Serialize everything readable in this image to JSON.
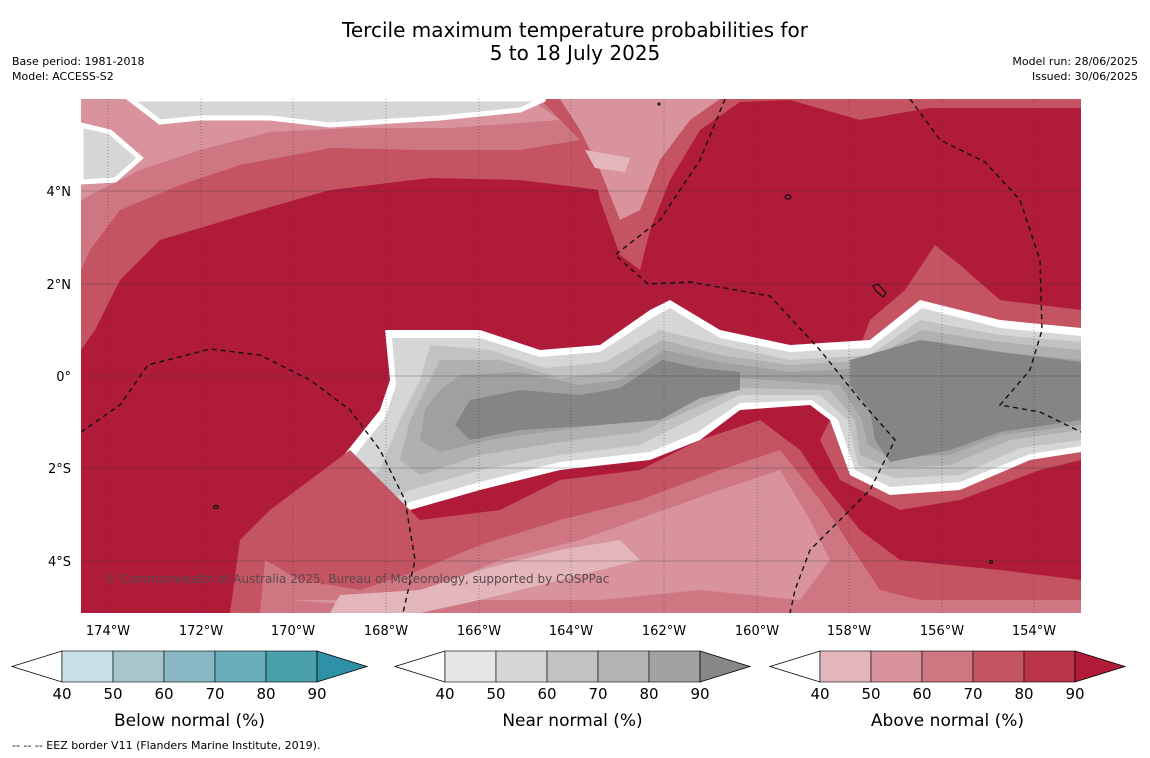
{
  "header": {
    "title_line1": "Tercile maximum temperature probabilities for",
    "title_line2": "5 to 18 July 2025",
    "base_period": "Base period: 1981-2018",
    "model": "Model: ACCESS-S2",
    "model_run": "Model run: 28/06/2025",
    "issued": "Issued: 30/06/2025"
  },
  "map": {
    "lon_labels": [
      "174°W",
      "172°W",
      "170°W",
      "168°W",
      "166°W",
      "164°W",
      "162°W",
      "160°W",
      "158°W",
      "156°W",
      "154°W"
    ],
    "lat_labels": [
      "4°N",
      "2°N",
      "0°",
      "2°S",
      "4°S"
    ],
    "copyright": "© Commonwealth of Australia 2025, Bureau of Meteorology, supported by COSPPac",
    "colors": {
      "above_70": "#c45462",
      "above_80": "#b81f3c",
      "above_90": "#b01b3a",
      "near_50": "#d6d6d6",
      "near_60": "#c2c2c2",
      "near_70": "#b0b0b0",
      "near_80": "#a0a0a0",
      "near_90": "#858585"
    }
  },
  "colorbars": [
    {
      "title": "Below normal (%)",
      "ticks": [
        "40",
        "50",
        "60",
        "70",
        "80",
        "90"
      ],
      "colors": [
        "#c7e0e6",
        "#a6c6cc",
        "#89b7c3",
        "#6aaebb",
        "#4a9fad",
        "#2f91a6"
      ]
    },
    {
      "title": "Near normal (%)",
      "ticks": [
        "40",
        "50",
        "60",
        "70",
        "80",
        "90"
      ],
      "colors": [
        "#e6e6e6",
        "#d6d6d6",
        "#c2c2c2",
        "#b4b4b4",
        "#a2a2a2",
        "#878787"
      ]
    },
    {
      "title": "Above normal (%)",
      "ticks": [
        "40",
        "50",
        "60",
        "70",
        "80",
        "90"
      ],
      "colors": [
        "#e3b6bc",
        "#d9939c",
        "#cf7683",
        "#c45462",
        "#b93447",
        "#b01b3a"
      ]
    }
  ],
  "footnote": "--  --  -- EEZ border V11 (Flanders Marine Institute, 2019)."
}
